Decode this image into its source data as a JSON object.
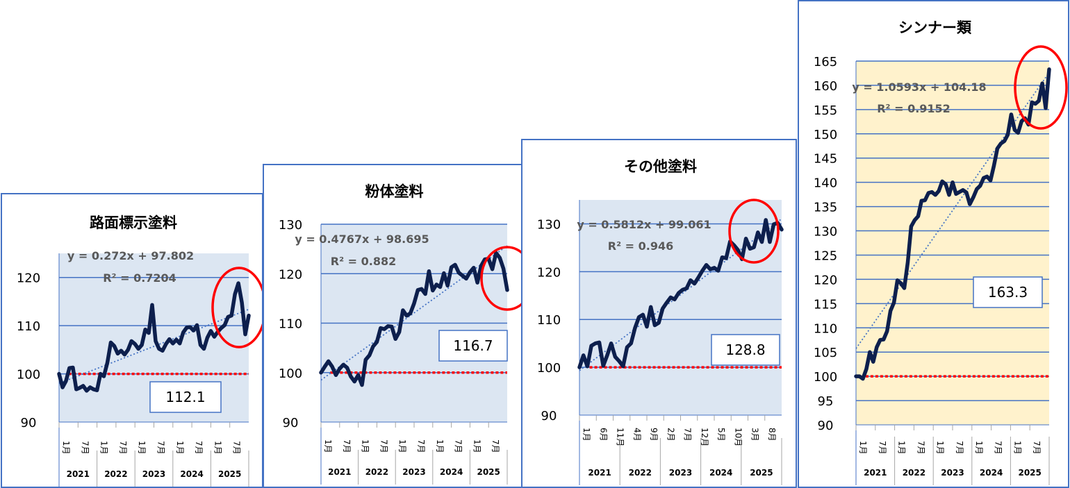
{
  "colors": {
    "plot_bg_blue": "#dce6f2",
    "plot_bg_yellow": "#fff2cc",
    "gridline": "#4472c4",
    "series_line": "#0d1f4d",
    "trend_line": "#4472c4",
    "baseline": "#ff0000",
    "highlight_ellipse": "#ff0000",
    "panel_border": "#4472c4"
  },
  "chart_data": [
    {
      "type": "line",
      "title": "路面標示塗料",
      "ylim": [
        90,
        125
      ],
      "yticks": [
        "90",
        "100",
        "110",
        "120"
      ],
      "month_ticks": [
        "1月",
        "7月",
        "1月",
        "7月",
        "1月",
        "7月",
        "1月",
        "7月",
        "1月",
        "7月"
      ],
      "year_labels": [
        "2021",
        "2022",
        "2023",
        "2024",
        "2025"
      ],
      "trendline": {
        "equation": "y = 0.272x + 97.802",
        "r2": "R² = 0.7204"
      },
      "callout": "112.1",
      "baseline": 100,
      "values": [
        100,
        97.2,
        98.5,
        101.2,
        101.3,
        96.8,
        97.1,
        97.5,
        96.5,
        97.2,
        96.8,
        96.6,
        100,
        99.5,
        102.3,
        106.5,
        105.8,
        104.2,
        104.8,
        104,
        105,
        106.8,
        106.2,
        105.2,
        106,
        109.2,
        108.5,
        114.3,
        106.8,
        105.2,
        104.8,
        106.2,
        107.2,
        106.3,
        107.1,
        106.3,
        108.6,
        109.6,
        109.7,
        109,
        110.1,
        106,
        105.2,
        107.5,
        108.9,
        107.7,
        108.7,
        109.5,
        110.1,
        111.8,
        112.1,
        116.5,
        118.8,
        114.8,
        108.2,
        112.1
      ]
    },
    {
      "type": "line",
      "title": "粉体塗料",
      "ylim": [
        90,
        130
      ],
      "yticks": [
        "90",
        "100",
        "110",
        "120",
        "130"
      ],
      "month_ticks": [
        "1月",
        "7月",
        "1月",
        "7月",
        "1月",
        "7月",
        "1月",
        "7月",
        "1月",
        "7月"
      ],
      "year_labels": [
        "2021",
        "2022",
        "2023",
        "2024",
        "2025"
      ],
      "trendline": {
        "equation": "y = 0.4767x + 98.695",
        "r2": "R² = 0.882"
      },
      "callout": "116.7",
      "baseline": 100,
      "values": [
        100,
        101.2,
        102.3,
        101.2,
        99.5,
        100.8,
        101.6,
        101,
        99.2,
        98.2,
        99.5,
        97.5,
        102.6,
        103.5,
        105.3,
        106.2,
        109,
        108.8,
        109.4,
        109.3,
        106.8,
        108.2,
        112.6,
        111.5,
        112,
        114,
        116.7,
        116.9,
        115.9,
        120.5,
        116.6,
        117.8,
        117.3,
        120.1,
        117.6,
        121.3,
        121.8,
        120.2,
        119.6,
        119,
        120.3,
        121.2,
        118.2,
        121.6,
        122.9,
        123,
        120.9,
        124.2,
        123.2,
        121,
        116.7
      ]
    },
    {
      "type": "line",
      "title": "その他塗料",
      "ylim": [
        90,
        135
      ],
      "yticks": [
        "90",
        "100",
        "110",
        "120",
        "130"
      ],
      "month_ticks": [
        "1月",
        "6月",
        "11月",
        "4月",
        "9月",
        "2月",
        "7月",
        "12月",
        "5月",
        "10月",
        "3月",
        "8月"
      ],
      "year_labels": [
        "2021",
        "2022",
        "2023",
        "2024",
        "2025"
      ],
      "trendline": {
        "equation": "y = 0.5812x + 99.061",
        "r2": "R² = 0.946"
      },
      "callout": "128.8",
      "baseline": 100,
      "values": [
        100,
        102.5,
        100.2,
        104.5,
        105,
        105.2,
        100.3,
        102.5,
        105,
        102.2,
        101.3,
        100.2,
        104.2,
        105,
        108.2,
        110.5,
        111,
        108.5,
        112.6,
        108.8,
        109.3,
        112.3,
        113.5,
        114.6,
        114.2,
        115.5,
        116.2,
        116.5,
        118.2,
        117.5,
        118.8,
        120.2,
        121.4,
        120.5,
        120.8,
        120.2,
        123,
        122.8,
        126.3,
        125.5,
        124.5,
        122.6,
        126.9,
        124.8,
        125.1,
        128.2,
        126.2,
        130.8,
        126.2,
        129.9,
        130.2,
        128.8
      ]
    },
    {
      "type": "line",
      "title": "シンナー類",
      "ylim": [
        90,
        165
      ],
      "yticks": [
        "90",
        "95",
        "100",
        "105",
        "110",
        "115",
        "120",
        "125",
        "130",
        "135",
        "140",
        "145",
        "150",
        "155",
        "160",
        "165"
      ],
      "month_ticks": [
        "1月",
        "7月",
        "1月",
        "7月",
        "1月",
        "7月",
        "1月",
        "7月",
        "1月",
        "7月"
      ],
      "year_labels": [
        "2021",
        "2022",
        "2023",
        "2024",
        "2025"
      ],
      "trendline": {
        "equation": "y = 1.0593x + 104.18",
        "r2": "R² = 0.9152"
      },
      "callout": "163.3",
      "baseline": 100,
      "values": [
        100,
        100,
        99.5,
        101.5,
        105,
        103,
        106,
        107.5,
        107.6,
        109.3,
        113.5,
        115.2,
        119.8,
        119.2,
        118.2,
        123.5,
        130.9,
        132.2,
        133,
        136.2,
        136.3,
        137.8,
        138,
        137.4,
        138.2,
        140.2,
        139.6,
        137.4,
        140,
        137.6,
        138,
        138.4,
        137.9,
        135.5,
        136.9,
        138.6,
        139.3,
        140.9,
        141.2,
        140.4,
        143.5,
        147,
        148,
        148.5,
        149.8,
        154,
        150.8,
        150.2,
        152.6,
        153.2,
        151.9,
        156.5,
        156.2,
        156.8,
        160.4,
        155.3,
        163.3
      ]
    }
  ]
}
